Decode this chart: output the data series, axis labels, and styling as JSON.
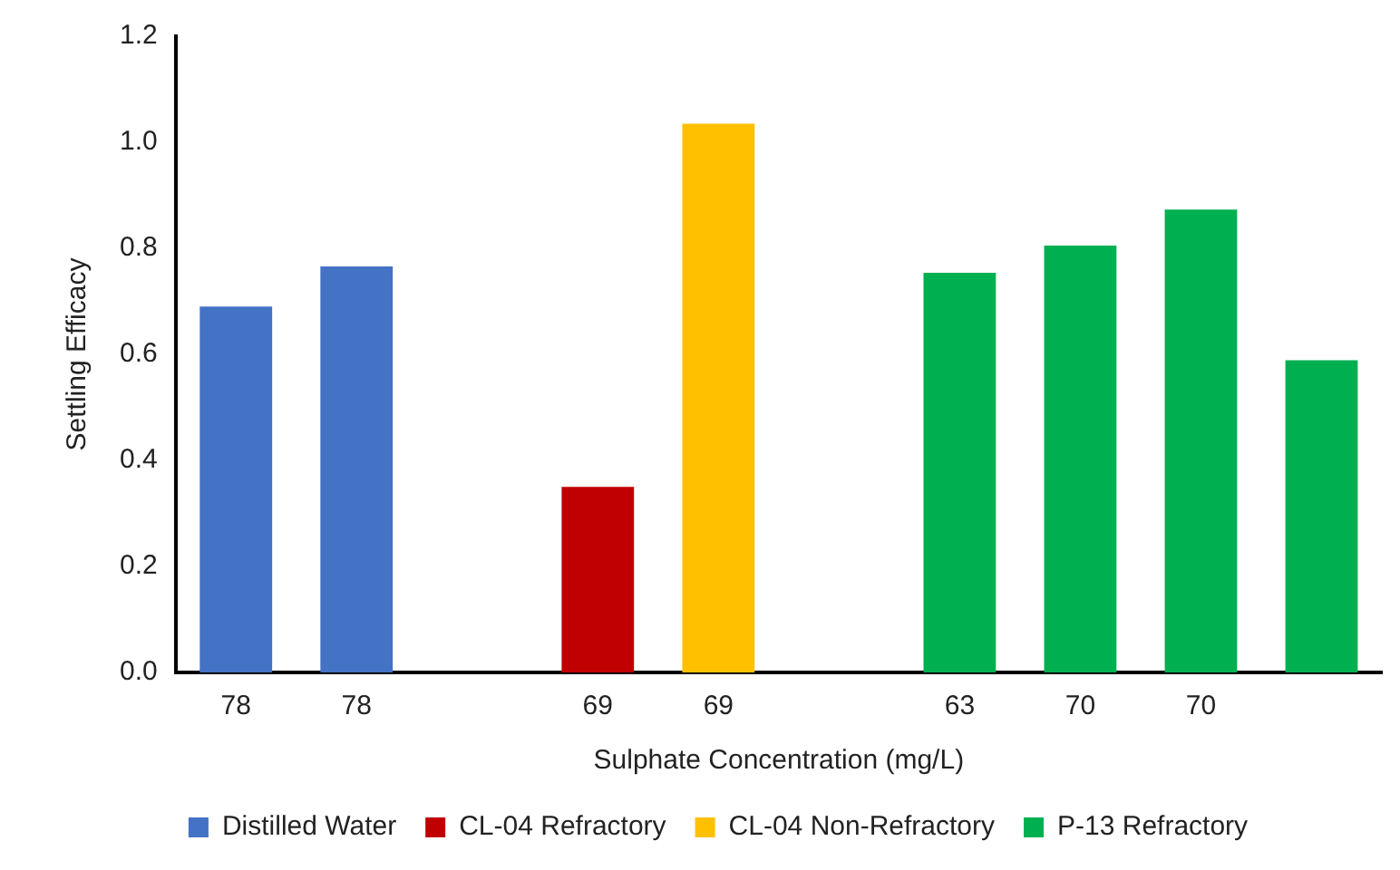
{
  "chart_data": {
    "type": "bar",
    "xlabel": "Sulphate Concentration (mg/L)",
    "ylabel": "Settling Efficacy",
    "categories": [
      "78",
      "78",
      null,
      "69",
      "69",
      null,
      "63",
      "70",
      "70",
      null
    ],
    "series": [
      {
        "name": "Distilled Water",
        "color": "#4472c4",
        "values": [
          0.69,
          0.766,
          null,
          null,
          null,
          null,
          null,
          null,
          null,
          null
        ]
      },
      {
        "name": "CL-04 Refractory",
        "color": "#c00000",
        "values": [
          null,
          null,
          null,
          0.35,
          null,
          null,
          null,
          null,
          null,
          null
        ]
      },
      {
        "name": "CL-04 Non-Refractory",
        "color": "#ffc000",
        "values": [
          null,
          null,
          null,
          null,
          1.035,
          null,
          null,
          null,
          null,
          null
        ]
      },
      {
        "name": "P-13 Refractory",
        "color": "#00b050",
        "values": [
          null,
          null,
          null,
          null,
          null,
          null,
          0.754,
          0.805,
          0.873,
          0.589
        ]
      }
    ],
    "ylim": [
      0,
      1.2
    ],
    "yticks": [
      {
        "value": 0,
        "label": "0.0"
      },
      0.2,
      0.4,
      0.6,
      0.8,
      {
        "value": 1,
        "label": "1.0"
      },
      1.2
    ],
    "grid": false,
    "legend": "bottom"
  }
}
